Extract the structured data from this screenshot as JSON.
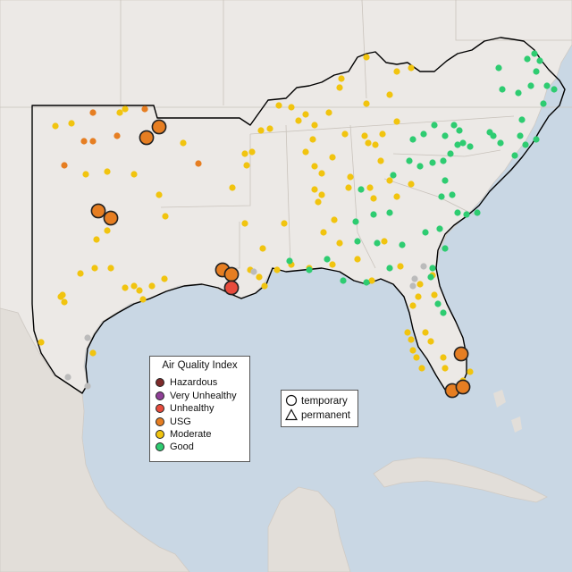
{
  "colors": {
    "ocean": "#c9d7e4",
    "land": "#ece9e6",
    "land_south": "#e2ded9",
    "hazardous": "#7e2a2a",
    "very_unhealthy": "#8f3f97",
    "unhealthy": "#e84c3d",
    "usg": "#e67e22",
    "moderate": "#f1c40f",
    "good": "#2ecc71",
    "no_data": "#bbbbbb"
  },
  "aqi_legend": {
    "title": "Air Quality Index",
    "items": [
      {
        "label": "Hazardous",
        "color": "#7e2a2a"
      },
      {
        "label": "Very Unhealthy",
        "color": "#8f3f97"
      },
      {
        "label": "Unhealthy",
        "color": "#e84c3d"
      },
      {
        "label": "USG",
        "color": "#e67e22"
      },
      {
        "label": "Moderate",
        "color": "#f1c40f"
      },
      {
        "label": "Good",
        "color": "#2ecc71"
      }
    ]
  },
  "shape_legend": {
    "items": [
      {
        "label": "temporary",
        "shape": "circle-icon"
      },
      {
        "label": "permanent",
        "shape": "triangle-icon"
      }
    ]
  }
}
